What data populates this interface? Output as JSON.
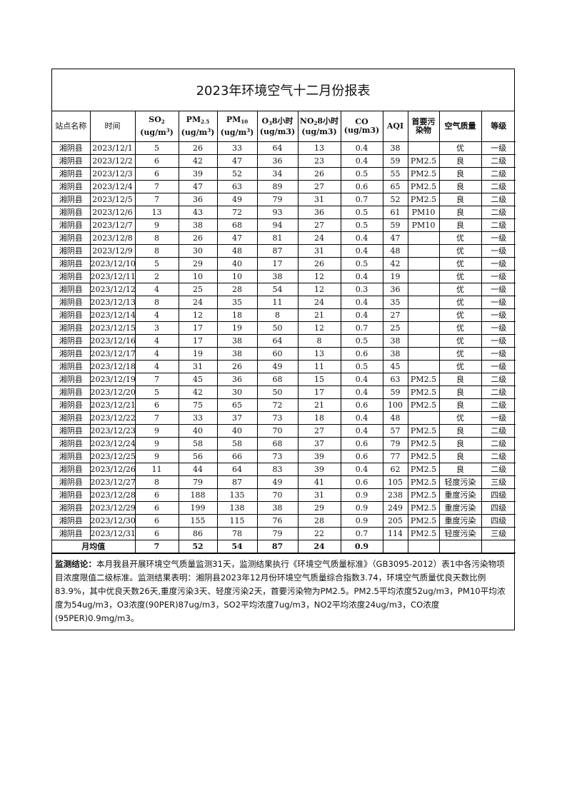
{
  "title": "2023年环境空气十二月份报表",
  "headers": {
    "station": "站点名称",
    "time": "时间",
    "so2": "SO",
    "so2_sub": "2",
    "so2_unit": "(ug/m",
    "so2_unit_sup": "3",
    "so2_unit_end": ")",
    "pm25": "PM",
    "pm25_sub": "2.5",
    "pm25_unit": "(ug/m",
    "pm25_unit_sup": "3",
    "pm25_unit_end": ")",
    "pm10": "PM",
    "pm10_sub": "10",
    "pm10_unit": "(ug/m",
    "pm10_unit_sup": "3",
    "pm10_unit_end": ")",
    "o3": "O",
    "o3_sub": "3",
    "o3_rest": "8小时",
    "o3_unit": "(ug/m3)",
    "no2": "NO",
    "no2_sub": "2",
    "no2_rest": "8小时",
    "no2_unit": "(ug/m3)",
    "co": "CO",
    "co_unit": "(ug/m3)",
    "aqi": "AQI",
    "primary": "首要污染物",
    "quality": "空气质量",
    "level": "等级"
  },
  "rows": [
    [
      "湘阴县",
      "2023/12/1",
      "5",
      "26",
      "33",
      "64",
      "13",
      "0.4",
      "38",
      "",
      "优",
      "一级"
    ],
    [
      "湘阴县",
      "2023/12/2",
      "6",
      "42",
      "47",
      "36",
      "23",
      "0.4",
      "59",
      "PM2.5",
      "良",
      "二级"
    ],
    [
      "湘阴县",
      "2023/12/3",
      "6",
      "39",
      "52",
      "34",
      "26",
      "0.5",
      "55",
      "PM2.5",
      "良",
      "二级"
    ],
    [
      "湘阴县",
      "2023/12/4",
      "7",
      "47",
      "63",
      "89",
      "27",
      "0.6",
      "65",
      "PM2.5",
      "良",
      "二级"
    ],
    [
      "湘阴县",
      "2023/12/5",
      "7",
      "36",
      "49",
      "79",
      "31",
      "0.7",
      "52",
      "PM2.5",
      "良",
      "二级"
    ],
    [
      "湘阴县",
      "2023/12/6",
      "13",
      "43",
      "72",
      "93",
      "36",
      "0.5",
      "61",
      "PM10",
      "良",
      "二级"
    ],
    [
      "湘阴县",
      "2023/12/7",
      "9",
      "38",
      "68",
      "94",
      "27",
      "0.5",
      "59",
      "PM10",
      "良",
      "二级"
    ],
    [
      "湘阴县",
      "2023/12/8",
      "8",
      "26",
      "47",
      "81",
      "24",
      "0.4",
      "47",
      "",
      "优",
      "一级"
    ],
    [
      "湘阴县",
      "2023/12/9",
      "8",
      "30",
      "48",
      "87",
      "31",
      "0.4",
      "48",
      "",
      "优",
      "一级"
    ],
    [
      "湘阴县",
      "2023/12/10",
      "5",
      "29",
      "40",
      "17",
      "26",
      "0.5",
      "42",
      "",
      "优",
      "一级"
    ],
    [
      "湘阴县",
      "2023/12/11",
      "2",
      "10",
      "10",
      "38",
      "12",
      "0.4",
      "19",
      "",
      "优",
      "一级"
    ],
    [
      "湘阴县",
      "2023/12/12",
      "4",
      "25",
      "28",
      "54",
      "12",
      "0.3",
      "36",
      "",
      "优",
      "一级"
    ],
    [
      "湘阴县",
      "2023/12/13",
      "8",
      "24",
      "35",
      "11",
      "24",
      "0.4",
      "35",
      "",
      "优",
      "一级"
    ],
    [
      "湘阴县",
      "2023/12/14",
      "4",
      "12",
      "18",
      "8",
      "21",
      "0.4",
      "27",
      "",
      "优",
      "一级"
    ],
    [
      "湘阴县",
      "2023/12/15",
      "3",
      "17",
      "19",
      "50",
      "12",
      "0.7",
      "25",
      "",
      "优",
      "一级"
    ],
    [
      "湘阴县",
      "2023/12/16",
      "4",
      "17",
      "38",
      "64",
      "8",
      "0.5",
      "38",
      "",
      "优",
      "一级"
    ],
    [
      "湘阴县",
      "2023/12/17",
      "4",
      "19",
      "38",
      "60",
      "13",
      "0.6",
      "38",
      "",
      "优",
      "一级"
    ],
    [
      "湘阴县",
      "2023/12/18",
      "4",
      "31",
      "26",
      "49",
      "11",
      "0.5",
      "45",
      "",
      "优",
      "一级"
    ],
    [
      "湘阴县",
      "2023/12/19",
      "7",
      "45",
      "36",
      "68",
      "15",
      "0.4",
      "63",
      "PM2.5",
      "良",
      "二级"
    ],
    [
      "湘阴县",
      "2023/12/20",
      "5",
      "42",
      "30",
      "50",
      "17",
      "0.4",
      "59",
      "PM2.5",
      "良",
      "二级"
    ],
    [
      "湘阴县",
      "2023/12/21",
      "6",
      "75",
      "65",
      "72",
      "21",
      "0.6",
      "100",
      "PM2.5",
      "良",
      "二级"
    ],
    [
      "湘阴县",
      "2023/12/22",
      "7",
      "33",
      "37",
      "73",
      "18",
      "0.4",
      "48",
      "",
      "优",
      "一级"
    ],
    [
      "湘阴县",
      "2023/12/23",
      "9",
      "40",
      "40",
      "70",
      "27",
      "0.4",
      "57",
      "PM2.5",
      "良",
      "二级"
    ],
    [
      "湘阴县",
      "2023/12/24",
      "9",
      "58",
      "58",
      "68",
      "37",
      "0.6",
      "79",
      "PM2.5",
      "良",
      "二级"
    ],
    [
      "湘阴县",
      "2023/12/25",
      "9",
      "56",
      "66",
      "73",
      "39",
      "0.6",
      "77",
      "PM2.5",
      "良",
      "二级"
    ],
    [
      "湘阴县",
      "2023/12/26",
      "11",
      "44",
      "64",
      "83",
      "39",
      "0.4",
      "62",
      "PM2.5",
      "良",
      "二级"
    ],
    [
      "湘阴县",
      "2023/12/27",
      "8",
      "79",
      "87",
      "49",
      "41",
      "0.6",
      "105",
      "PM2.5",
      "轻度污染",
      "三级"
    ],
    [
      "湘阴县",
      "2023/12/28",
      "6",
      "188",
      "135",
      "70",
      "31",
      "0.9",
      "238",
      "PM2.5",
      "重度污染",
      "四级"
    ],
    [
      "湘阴县",
      "2023/12/29",
      "6",
      "199",
      "138",
      "38",
      "29",
      "0.9",
      "249",
      "PM2.5",
      "重度污染",
      "四级"
    ],
    [
      "湘阴县",
      "2023/12/30",
      "6",
      "155",
      "115",
      "76",
      "28",
      "0.9",
      "205",
      "PM2.5",
      "重度污染",
      "四级"
    ],
    [
      "湘阴县",
      "2023/12/31",
      "6",
      "86",
      "78",
      "79",
      "22",
      "0.7",
      "114",
      "PM2.5",
      "轻度污染",
      "三级"
    ]
  ],
  "average": {
    "label": "月均值",
    "values": [
      "7",
      "52",
      "54",
      "87",
      "24",
      "0.9",
      "",
      "",
      "",
      ""
    ]
  },
  "conclusion": {
    "label": "监测结论：",
    "text": "本月我县开展环境空气质量监测31天，监测结果执行《环境空气质量标准》（GB3095-2012）表1中各污染物项目浓度限值二级标准。监测结果表明：湘阴县2023年12月份环境空气质量综合指数3.74，环境空气质量优良天数比例83.9%，其中优良天数26天,重度污染3天、轻度污染2天，首要污染物为PM2.5。PM2.5平均浓度52ug/m3，PM10平均浓度为54ug/m3，O3浓度(90PER)87ug/m3，SO2平均浓度7ug/m3，NO2平均浓度24ug/m3，CO浓度(95PER)0.9mg/m3。"
  }
}
